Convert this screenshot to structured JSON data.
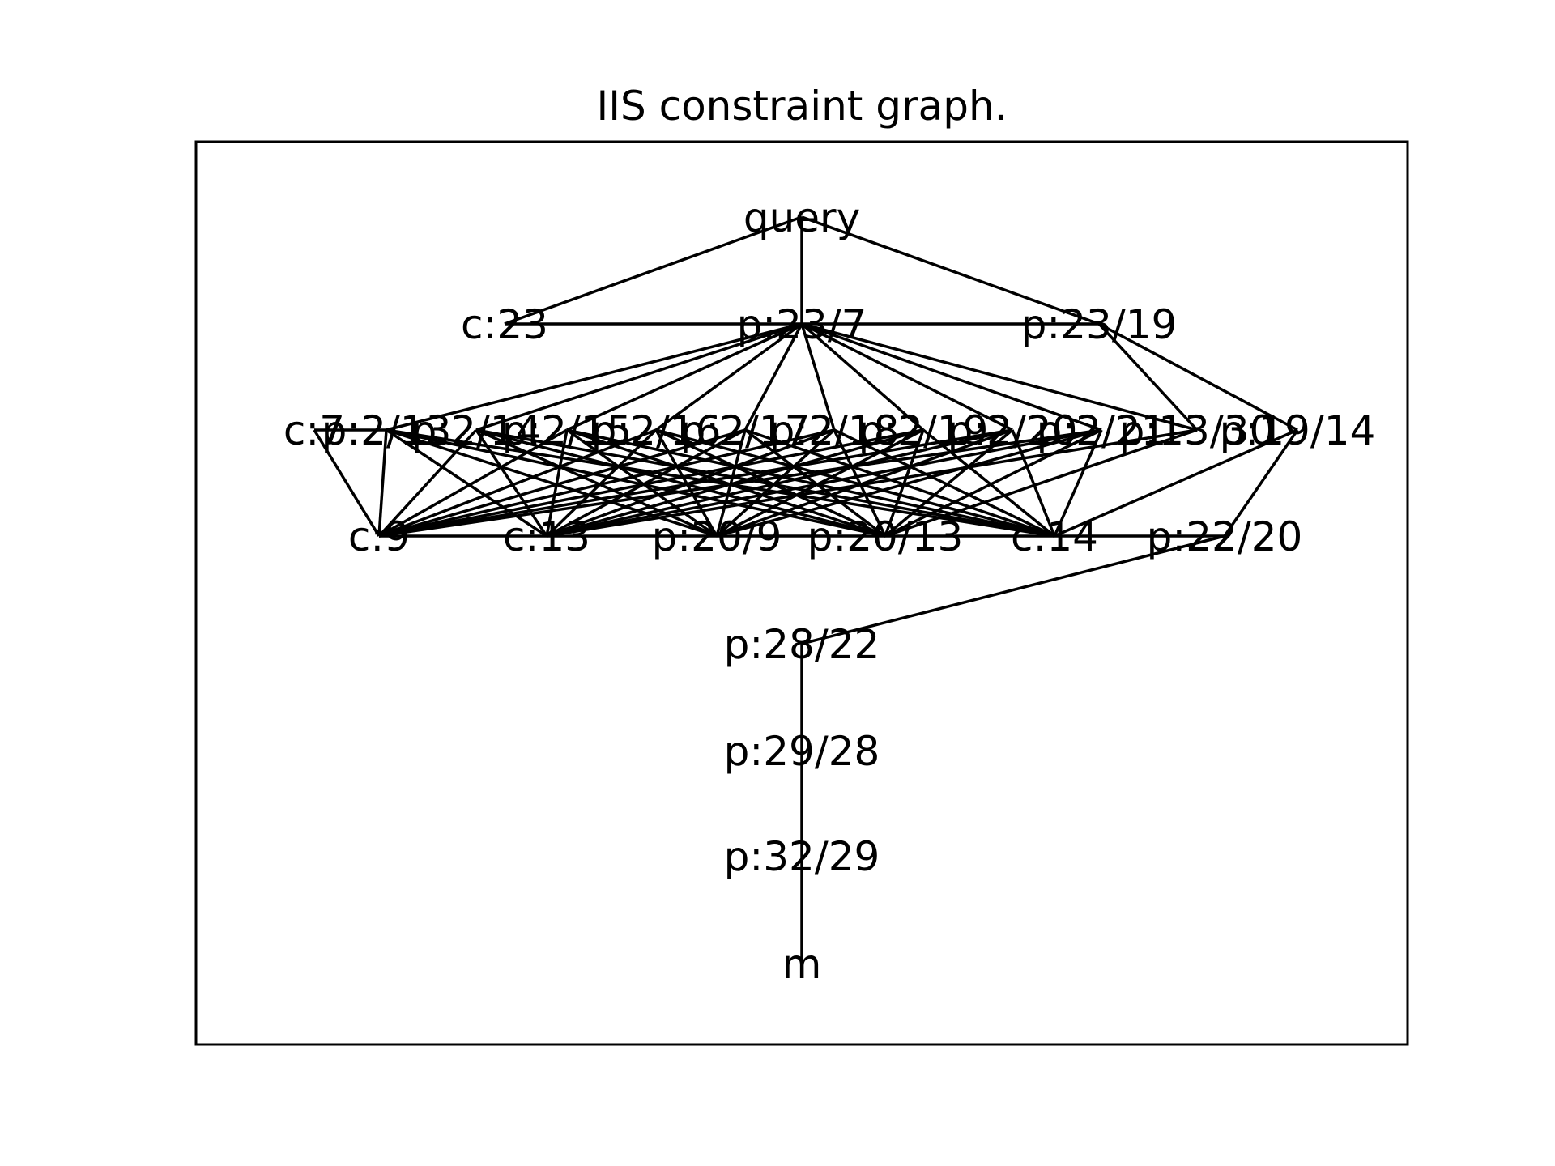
{
  "title": "IIS constraint graph.",
  "nodes": [
    {
      "id": "query",
      "label": "query",
      "level": 0
    },
    {
      "id": "c23",
      "label": "c:23",
      "level": 1
    },
    {
      "id": "p23_7",
      "label": "p:23/7",
      "level": 1
    },
    {
      "id": "p23_19",
      "label": "p:23/19",
      "level": 1
    },
    {
      "id": "c7",
      "label": "c:7",
      "level": 2
    },
    {
      "id": "p2_13",
      "label": "p:2/13",
      "level": 2
    },
    {
      "id": "p2_14",
      "label": "p:2/14",
      "level": 2
    },
    {
      "id": "p2_15",
      "label": "p:2/15",
      "level": 2
    },
    {
      "id": "p2_16",
      "label": "p:2/16",
      "level": 2
    },
    {
      "id": "p2_17",
      "label": "p:2/17",
      "level": 2
    },
    {
      "id": "p2_18",
      "label": "p:2/18",
      "level": 2
    },
    {
      "id": "p2_19",
      "label": "p:2/19",
      "level": 2
    },
    {
      "id": "p2_20",
      "label": "p:2/20",
      "level": 2
    },
    {
      "id": "p2_21",
      "label": "p:2/21",
      "level": 2
    },
    {
      "id": "p13_30",
      "label": "p:13/30",
      "level": 2
    },
    {
      "id": "p19_14",
      "label": "p:19/14",
      "level": 2
    },
    {
      "id": "c9",
      "label": "c:9",
      "level": 3
    },
    {
      "id": "c13",
      "label": "c:13",
      "level": 3
    },
    {
      "id": "p20_9",
      "label": "p:20/9",
      "level": 3
    },
    {
      "id": "p20_13",
      "label": "p:20/13",
      "level": 3
    },
    {
      "id": "c14",
      "label": "c:14",
      "level": 3
    },
    {
      "id": "p22_20",
      "label": "p:22/20",
      "level": 3
    },
    {
      "id": "p28_22",
      "label": "p:28/22",
      "level": 4
    },
    {
      "id": "p29_28",
      "label": "p:29/28",
      "level": 5
    },
    {
      "id": "p32_29",
      "label": "p:32/29",
      "level": 6
    },
    {
      "id": "m",
      "label": "m",
      "level": 7
    }
  ],
  "edges": [
    [
      "query",
      "c23"
    ],
    [
      "query",
      "p23_7"
    ],
    [
      "query",
      "p23_19"
    ],
    [
      "c23",
      "p23_7"
    ],
    [
      "p23_7",
      "p23_19"
    ],
    [
      "p23_7",
      "p2_13"
    ],
    [
      "p23_7",
      "p2_14"
    ],
    [
      "p23_7",
      "p2_15"
    ],
    [
      "p23_7",
      "p2_16"
    ],
    [
      "p23_7",
      "p2_17"
    ],
    [
      "p23_7",
      "p2_18"
    ],
    [
      "p23_7",
      "p2_19"
    ],
    [
      "p23_7",
      "p2_20"
    ],
    [
      "p23_7",
      "p2_21"
    ],
    [
      "p23_7",
      "p13_30"
    ],
    [
      "p23_19",
      "p13_30"
    ],
    [
      "p23_19",
      "p19_14"
    ],
    [
      "c7",
      "c9"
    ],
    [
      "c7",
      "p2_13"
    ],
    [
      "p2_13",
      "c9"
    ],
    [
      "p2_13",
      "c13"
    ],
    [
      "p2_13",
      "p20_9"
    ],
    [
      "p2_13",
      "p20_13"
    ],
    [
      "p2_13",
      "c14"
    ],
    [
      "p2_14",
      "c9"
    ],
    [
      "p2_14",
      "c13"
    ],
    [
      "p2_14",
      "p20_9"
    ],
    [
      "p2_14",
      "p20_13"
    ],
    [
      "p2_14",
      "c14"
    ],
    [
      "p2_15",
      "c9"
    ],
    [
      "p2_15",
      "c13"
    ],
    [
      "p2_15",
      "p20_9"
    ],
    [
      "p2_15",
      "p20_13"
    ],
    [
      "p2_15",
      "c14"
    ],
    [
      "p2_16",
      "c9"
    ],
    [
      "p2_16",
      "c13"
    ],
    [
      "p2_16",
      "p20_9"
    ],
    [
      "p2_16",
      "p20_13"
    ],
    [
      "p2_16",
      "c14"
    ],
    [
      "p2_17",
      "c9"
    ],
    [
      "p2_17",
      "c13"
    ],
    [
      "p2_17",
      "p20_9"
    ],
    [
      "p2_17",
      "p20_13"
    ],
    [
      "p2_17",
      "c14"
    ],
    [
      "p2_18",
      "c9"
    ],
    [
      "p2_18",
      "c13"
    ],
    [
      "p2_18",
      "p20_9"
    ],
    [
      "p2_18",
      "p20_13"
    ],
    [
      "p2_18",
      "c14"
    ],
    [
      "p2_19",
      "c9"
    ],
    [
      "p2_19",
      "c13"
    ],
    [
      "p2_19",
      "p20_9"
    ],
    [
      "p2_19",
      "p20_13"
    ],
    [
      "p2_19",
      "c14"
    ],
    [
      "p2_20",
      "c9"
    ],
    [
      "p2_20",
      "c13"
    ],
    [
      "p2_20",
      "p20_9"
    ],
    [
      "p2_20",
      "p20_13"
    ],
    [
      "p2_20",
      "c14"
    ],
    [
      "p2_21",
      "c9"
    ],
    [
      "p2_21",
      "c13"
    ],
    [
      "p2_21",
      "p20_9"
    ],
    [
      "p2_21",
      "p20_13"
    ],
    [
      "p2_21",
      "c14"
    ],
    [
      "p13_30",
      "c13"
    ],
    [
      "p13_30",
      "p20_13"
    ],
    [
      "p19_14",
      "c14"
    ],
    [
      "p19_14",
      "p22_20"
    ],
    [
      "c9",
      "c13"
    ],
    [
      "c13",
      "p20_9"
    ],
    [
      "p20_9",
      "p20_13"
    ],
    [
      "p20_13",
      "c14"
    ],
    [
      "c14",
      "p22_20"
    ],
    [
      "p22_20",
      "p28_22"
    ],
    [
      "p28_22",
      "p29_28"
    ],
    [
      "p29_28",
      "p32_29"
    ],
    [
      "p32_29",
      "m"
    ]
  ]
}
